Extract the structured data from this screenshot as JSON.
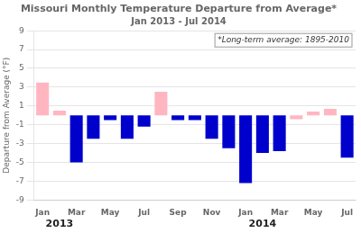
{
  "chart_data": {
    "type": "bar",
    "title": "Missouri Monthly Temperature Departure from Average*",
    "subtitle": "Jan 2013 - Jul 2014",
    "y_label": "Departure from Average (°F)",
    "annotation": "*Long-term average: 1895-2010",
    "year_labels": [
      {
        "text": "2013",
        "x": 1
      },
      {
        "text": "2014",
        "x": 13
      }
    ],
    "categories": [
      "Jan",
      null,
      "Mar",
      null,
      "May",
      null,
      "Jul",
      null,
      "Sep",
      null,
      "Nov",
      null,
      "Jan",
      null,
      "Mar",
      null,
      "May",
      null,
      "Jul"
    ],
    "values": [
      3.5,
      0.5,
      -5.0,
      -2.5,
      -0.5,
      -2.5,
      -1.2,
      2.5,
      -0.5,
      -0.5,
      -2.5,
      -3.5,
      -7.2,
      -4.0,
      -3.8,
      -0.4,
      0.4,
      0.7,
      -4.5
    ],
    "colors": [
      "#FFB6C1",
      "#FFB6C1",
      "#0000CD",
      "#0000CD",
      "#0000CD",
      "#0000CD",
      "#0000CD",
      "#FFB6C1",
      "#0000CD",
      "#0000CD",
      "#0000CD",
      "#0000CD",
      "#0000CD",
      "#0000CD",
      "#0000CD",
      "#FFB6C1",
      "#FFB6C1",
      "#FFB6C1",
      "#0000CD"
    ],
    "ylim": [
      -9,
      9
    ],
    "yticks": [
      -9,
      -7,
      -5,
      -3,
      -1,
      1,
      3,
      5,
      7,
      9
    ],
    "grid": true
  }
}
